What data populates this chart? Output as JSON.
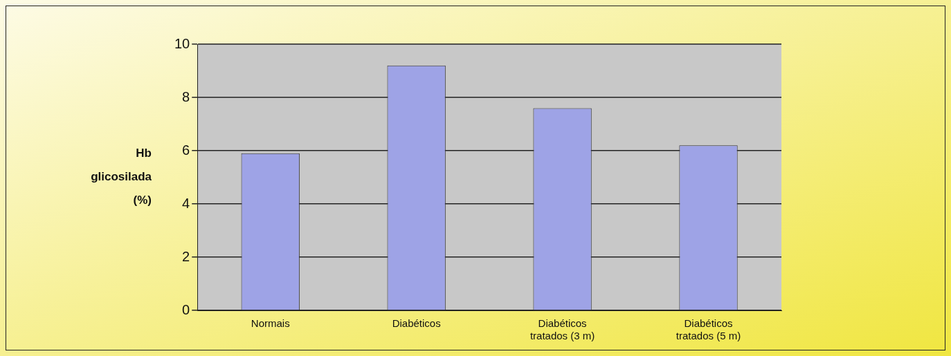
{
  "chart_data": {
    "type": "bar",
    "ylabel": "Hb glicosilada (%)",
    "categories": [
      "Normais",
      "Diabéticos",
      "Diabéticos tratados (3 m)",
      "Diabéticos tratados (5 m)"
    ],
    "values": [
      5.9,
      9.2,
      7.6,
      6.2
    ],
    "color": "#9ea3e6",
    "ylim": [
      0,
      10
    ],
    "yticks": [
      0,
      2,
      4,
      6,
      8,
      10
    ],
    "grid": "y",
    "legend": false
  }
}
